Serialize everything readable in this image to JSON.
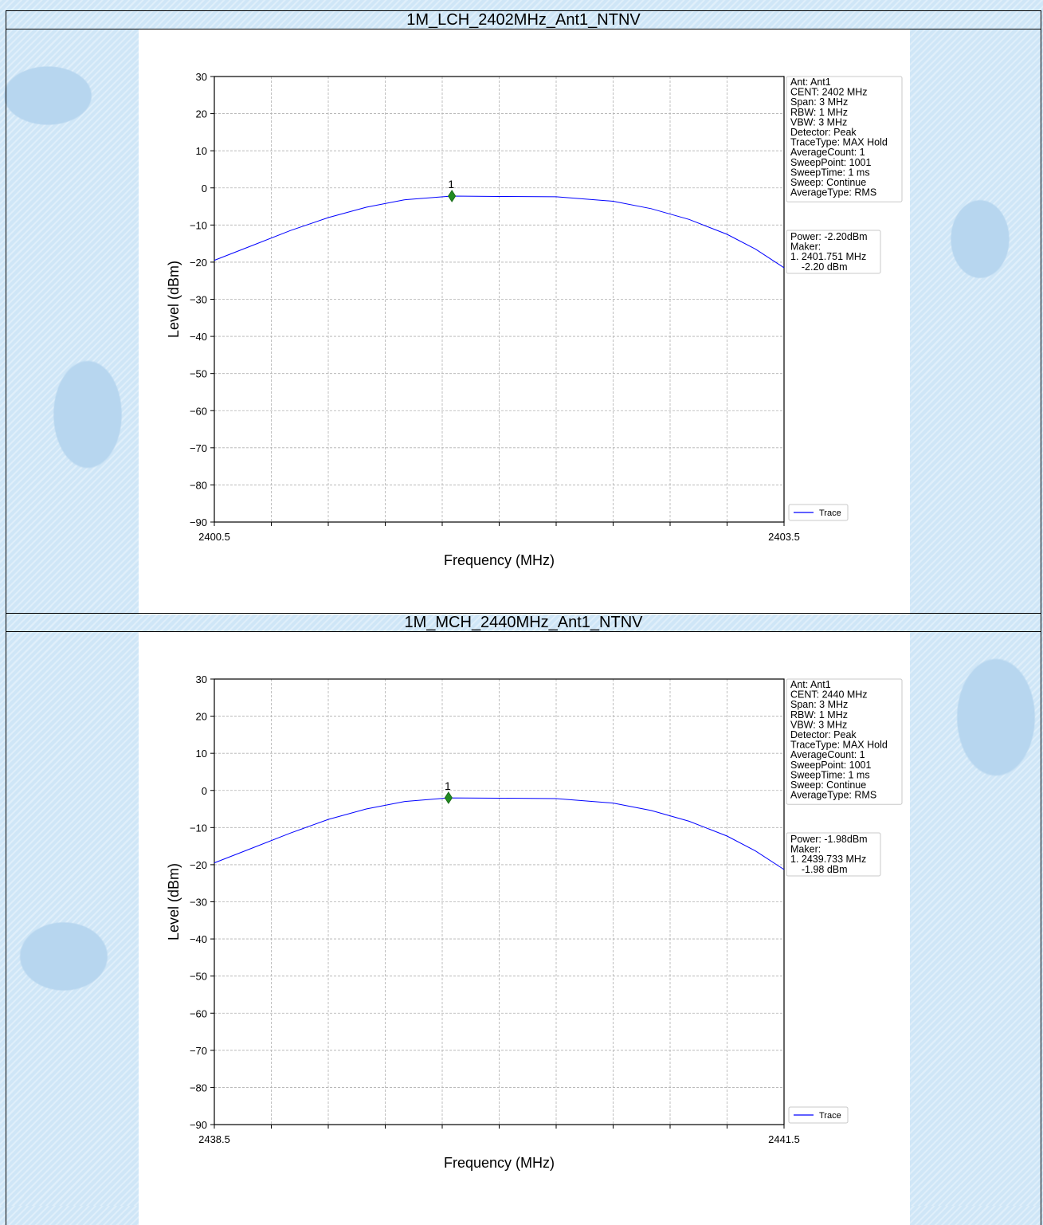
{
  "chart_data": [
    {
      "type": "line",
      "title": "1M_LCH_2402MHz_Ant1_NTNV",
      "xlabel": "Frequency (MHz)",
      "ylabel": "Level (dBm)",
      "xlim": [
        2400.5,
        2403.5
      ],
      "ylim": [
        -90,
        30
      ],
      "x_tick_labels": [
        "2400.5",
        "2403.5"
      ],
      "y_ticks": [
        30,
        20,
        10,
        0,
        -10,
        -20,
        -30,
        -40,
        -50,
        -60,
        -70,
        -80,
        -90
      ],
      "y_tick_labels": [
        "30",
        "20",
        "10",
        "0",
        "−10",
        "−20",
        "−30",
        "−40",
        "−50",
        "−60",
        "−70",
        "−80",
        "−90"
      ],
      "grid": true,
      "series": [
        {
          "name": "Trace",
          "color": "#0000ff",
          "x": [
            2400.5,
            2400.7,
            2400.9,
            2401.1,
            2401.3,
            2401.5,
            2401.75,
            2402.0,
            2402.3,
            2402.6,
            2402.8,
            2403.0,
            2403.2,
            2403.35,
            2403.5
          ],
          "y": [
            -19.5,
            -15.5,
            -11.5,
            -8.0,
            -5.2,
            -3.2,
            -2.2,
            -2.3,
            -2.4,
            -3.6,
            -5.6,
            -8.5,
            -12.5,
            -16.5,
            -21.5
          ]
        }
      ],
      "marker": {
        "label": "1",
        "x": 2401.751,
        "y": -2.2,
        "color": "#228b22"
      },
      "legend": {
        "label": "Trace",
        "placement": "lower-right outside"
      },
      "info_box": [
        "Ant: Ant1",
        "CENT: 2402 MHz",
        "Span: 3 MHz",
        "RBW: 1 MHz",
        "VBW: 3 MHz",
        "Detector: Peak",
        "TraceType: MAX Hold",
        "AverageCount: 1",
        "SweepPoint: 1001",
        "SweepTime: 1 ms",
        "Sweep: Continue",
        "AverageType: RMS"
      ],
      "power_box": [
        "Power: -2.20dBm",
        "Maker:",
        "1. 2401.751 MHz",
        "    -2.20 dBm"
      ]
    },
    {
      "type": "line",
      "title": "1M_MCH_2440MHz_Ant1_NTNV",
      "xlabel": "Frequency (MHz)",
      "ylabel": "Level (dBm)",
      "xlim": [
        2438.5,
        2441.5
      ],
      "ylim": [
        -90,
        30
      ],
      "x_tick_labels": [
        "2438.5",
        "2441.5"
      ],
      "y_ticks": [
        30,
        20,
        10,
        0,
        -10,
        -20,
        -30,
        -40,
        -50,
        -60,
        -70,
        -80,
        -90
      ],
      "y_tick_labels": [
        "30",
        "20",
        "10",
        "0",
        "−10",
        "−20",
        "−30",
        "−40",
        "−50",
        "−60",
        "−70",
        "−80",
        "−90"
      ],
      "grid": true,
      "series": [
        {
          "name": "Trace",
          "color": "#0000ff",
          "x": [
            2438.5,
            2438.7,
            2438.9,
            2439.1,
            2439.3,
            2439.5,
            2439.733,
            2440.0,
            2440.3,
            2440.6,
            2440.8,
            2441.0,
            2441.2,
            2441.35,
            2441.5
          ],
          "y": [
            -19.5,
            -15.5,
            -11.5,
            -7.8,
            -5.0,
            -3.0,
            -2.0,
            -2.1,
            -2.2,
            -3.4,
            -5.4,
            -8.3,
            -12.3,
            -16.3,
            -21.3
          ]
        }
      ],
      "marker": {
        "label": "1",
        "x": 2439.733,
        "y": -1.98,
        "color": "#228b22"
      },
      "legend": {
        "label": "Trace",
        "placement": "lower-right outside"
      },
      "info_box": [
        "Ant: Ant1",
        "CENT: 2440 MHz",
        "Span: 3 MHz",
        "RBW: 1 MHz",
        "VBW: 3 MHz",
        "Detector: Peak",
        "TraceType: MAX Hold",
        "AverageCount: 1",
        "SweepPoint: 1001",
        "SweepTime: 1 ms",
        "Sweep: Continue",
        "AverageType: RMS"
      ],
      "power_box": [
        "Power: -1.98dBm",
        "Maker:",
        "1. 2439.733 MHz",
        "    -1.98 dBm"
      ]
    }
  ]
}
